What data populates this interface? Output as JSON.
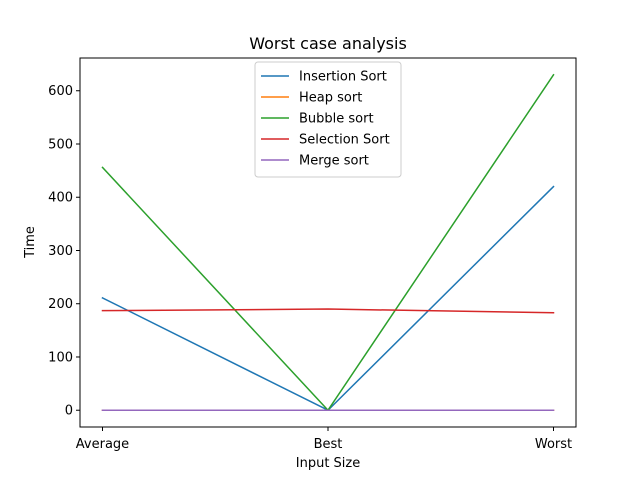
{
  "chart_data": {
    "type": "line",
    "title": "Worst case analysis",
    "xlabel": "Input Size",
    "ylabel": "Time",
    "categories": [
      "Average",
      "Best",
      "Worst"
    ],
    "ylim": [
      -31.5,
      661.5
    ],
    "yticks": [
      0,
      100,
      200,
      300,
      400,
      500,
      600
    ],
    "grid": false,
    "legend": "upper center",
    "series": [
      {
        "name": "Insertion Sort",
        "color": "#1f77b4",
        "values": [
          211,
          0,
          420
        ]
      },
      {
        "name": "Heap sort",
        "color": "#ff7f0e",
        "values": [
          0,
          0,
          0
        ]
      },
      {
        "name": "Bubble sort",
        "color": "#2ca02c",
        "values": [
          456,
          0,
          630
        ]
      },
      {
        "name": "Selection Sort",
        "color": "#d62728",
        "values": [
          187,
          190,
          183
        ]
      },
      {
        "name": "Merge sort",
        "color": "#9467bd",
        "values": [
          0,
          0,
          0
        ]
      }
    ]
  }
}
